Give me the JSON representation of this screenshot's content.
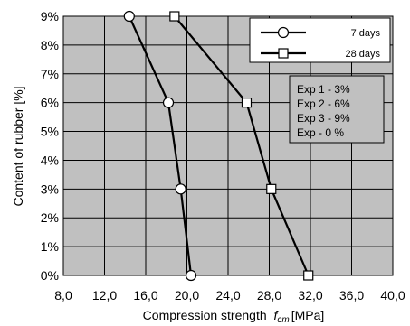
{
  "chart_data": {
    "type": "line",
    "xlabel": "Compression  strength",
    "xlabel_symbol": "f",
    "xlabel_subscript": "cm",
    "xlabel_unit": "[MPa]",
    "ylabel": "Content of rubber [%]",
    "xlim": [
      8,
      40
    ],
    "ylim": [
      0,
      9
    ],
    "x_ticks": [
      "8,0",
      "12,0",
      "16,0",
      "20,0",
      "24,0",
      "28,0",
      "32,0",
      "36,0",
      "40,0"
    ],
    "y_ticks": [
      "0%",
      "1%",
      "2%",
      "3%",
      "4%",
      "5%",
      "6%",
      "7%",
      "8%",
      "9%"
    ],
    "grid": true,
    "plot_background": "#c0c0c0",
    "line_color": "#000000",
    "legend_position": "top-right",
    "series": [
      {
        "name": "7 days",
        "marker": "circle",
        "points": [
          {
            "x": 20.4,
            "y": 0
          },
          {
            "x": 19.4,
            "y": 3
          },
          {
            "x": 18.2,
            "y": 6
          },
          {
            "x": 14.4,
            "y": 9
          }
        ]
      },
      {
        "name": "28 days",
        "marker": "square",
        "points": [
          {
            "x": 31.8,
            "y": 0
          },
          {
            "x": 28.2,
            "y": 3
          },
          {
            "x": 25.8,
            "y": 6
          },
          {
            "x": 18.8,
            "y": 9
          }
        ]
      }
    ],
    "annotation_lines": [
      "Exp 1 - 3%",
      "Exp 2 - 6%",
      "Exp 3 - 9%",
      "Exp - 0 %"
    ]
  }
}
